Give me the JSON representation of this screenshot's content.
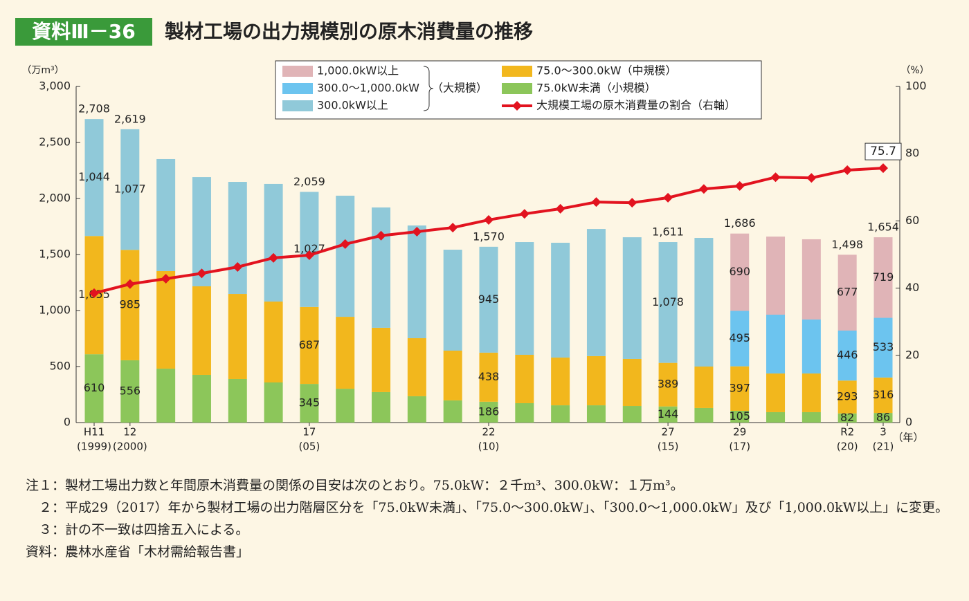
{
  "chart_data": {
    "type": "stacked-bar-line",
    "badge": "資料Ⅲ－36",
    "title": "製材工場の出力規模別の原木消費量の推移",
    "y_label": "（万m³）",
    "y2_label": "（%）",
    "x_label": "（年）",
    "legend_group_label": "（大規模）",
    "categories": [
      "H11",
      "12",
      null,
      null,
      null,
      null,
      "17",
      null,
      null,
      null,
      null,
      "22",
      null,
      null,
      null,
      null,
      "27",
      null,
      "29",
      null,
      null,
      "R2",
      "3"
    ],
    "category_sublabels": [
      "(1999)",
      "(2000)",
      null,
      null,
      null,
      null,
      "(05)",
      null,
      null,
      null,
      null,
      "(10)",
      null,
      null,
      null,
      null,
      "(15)",
      null,
      "(17)",
      null,
      null,
      "(20)",
      "(21)"
    ],
    "ylim": [
      0,
      3000
    ],
    "yticks": [
      0,
      500,
      {
        "value": 1000,
        "label": "1,000"
      },
      {
        "value": 1500,
        "label": "1,500"
      },
      {
        "value": 2000,
        "label": "2,000"
      },
      {
        "value": 2500,
        "label": "2,500"
      },
      {
        "value": 3000,
        "label": "3,000"
      }
    ],
    "y2lim": [
      0,
      100
    ],
    "y2ticks": [
      0,
      20,
      40,
      60,
      80,
      100
    ],
    "series": [
      {
        "name": "75.0kW未満（小規模）",
        "color": "#8cc65a",
        "values": [
          610,
          556,
          481,
          426,
          389,
          358,
          345,
          302,
          272,
          235,
          198,
          186,
          173,
          154,
          154,
          148,
          144,
          130,
          105,
          93,
          93,
          82,
          86
        ],
        "value_labels": [
          "610",
          "556",
          null,
          null,
          null,
          null,
          "345",
          null,
          null,
          null,
          null,
          "186",
          null,
          null,
          null,
          null,
          "144",
          null,
          "105",
          null,
          null,
          "82",
          "86"
        ]
      },
      {
        "name": "75.0～300.0kW（中規模）",
        "color": "#f2b71d",
        "values": [
          1055,
          985,
          871,
          790,
          759,
          722,
          687,
          642,
          574,
          518,
          444,
          438,
          432,
          426,
          439,
          420,
          389,
          370,
          397,
          345,
          345,
          293,
          316
        ],
        "value_labels": [
          "1,055",
          "985",
          null,
          null,
          null,
          null,
          "687",
          null,
          null,
          null,
          null,
          "438",
          null,
          null,
          null,
          null,
          "389",
          null,
          "397",
          null,
          null,
          "293",
          "316"
        ]
      },
      {
        "name": "300.0kW以上",
        "color": "#90c9d9",
        "values": [
          1044,
          1077,
          1000,
          975,
          1000,
          1050,
          1027,
          1081,
          1074,
          1006,
          901,
          945,
          1006,
          1025,
          1135,
          1086,
          1078,
          1148,
          null,
          null,
          null,
          null,
          null
        ],
        "value_labels": [
          "1,044",
          "1,077",
          null,
          null,
          null,
          null,
          "1,027",
          null,
          null,
          null,
          null,
          "945",
          null,
          null,
          null,
          null,
          "1,078",
          null,
          null,
          null,
          null,
          null,
          null
        ]
      },
      {
        "name": "300.0～1,000.0kW",
        "color": "#6cc4ef",
        "values": [
          null,
          null,
          null,
          null,
          null,
          null,
          null,
          null,
          null,
          null,
          null,
          null,
          null,
          null,
          null,
          null,
          null,
          null,
          495,
          525,
          482,
          446,
          533
        ],
        "value_labels": [
          null,
          null,
          null,
          null,
          null,
          null,
          null,
          null,
          null,
          null,
          null,
          null,
          null,
          null,
          null,
          null,
          null,
          null,
          "495",
          null,
          null,
          "446",
          "533"
        ]
      },
      {
        "name": "1,000.0kW以上",
        "color": "#e0b4b7",
        "values": [
          null,
          null,
          null,
          null,
          null,
          null,
          null,
          null,
          null,
          null,
          null,
          null,
          null,
          null,
          null,
          null,
          null,
          null,
          690,
          697,
          716,
          677,
          719
        ],
        "value_labels": [
          null,
          null,
          null,
          null,
          null,
          null,
          null,
          null,
          null,
          null,
          null,
          null,
          null,
          null,
          null,
          null,
          null,
          null,
          "690",
          null,
          null,
          "677",
          "719"
        ]
      },
      {
        "name": "大規模工場の原木消費量の割合（右軸）",
        "color": "#e2131f",
        "axis": "y2",
        "kind": "line",
        "values": [
          38.5,
          41.2,
          42.8,
          44.4,
          46.3,
          49.0,
          49.8,
          53.1,
          55.6,
          56.8,
          58.0,
          60.3,
          62.1,
          63.6,
          65.6,
          65.4,
          66.9,
          69.5,
          70.4,
          73.0,
          72.8,
          75.1,
          75.7
        ],
        "value_labels": [
          null,
          null,
          null,
          null,
          null,
          null,
          null,
          null,
          null,
          null,
          null,
          null,
          null,
          null,
          null,
          null,
          null,
          null,
          null,
          null,
          null,
          null,
          "75.7"
        ]
      }
    ],
    "totals": [
      {
        "value": 2708,
        "label": "2,708"
      },
      {
        "value": 2619,
        "label": "2,619"
      },
      null,
      null,
      null,
      null,
      {
        "value": 2059,
        "label": "2,059"
      },
      null,
      null,
      null,
      null,
      {
        "value": 1570,
        "label": "1,570"
      },
      null,
      null,
      null,
      null,
      {
        "value": 1611,
        "label": "1,611"
      },
      null,
      {
        "value": 1686,
        "label": "1,686"
      },
      null,
      null,
      {
        "value": 1498,
        "label": "1,498"
      },
      {
        "value": 1654,
        "label": "1,654"
      }
    ]
  },
  "notes": [
    {
      "label": "注１：",
      "text": "製材工場出力数と年間原木消費量の関係の目安は次のとおり。75.0kW：２千m³、300.0kW：１万m³。"
    },
    {
      "label": "２：",
      "text": "平成29（2017）年から製材工場の出力階層区分を「75.0kW未満」、「75.0～300.0kW」、「300.0～1,000.0kW」及び「1,000.0kW以上」に変更。"
    },
    {
      "label": "３：",
      "text": "計の不一致は四捨五入による。"
    },
    {
      "label": "資料：",
      "text": "農林水産省「木材需給報告書」"
    }
  ]
}
